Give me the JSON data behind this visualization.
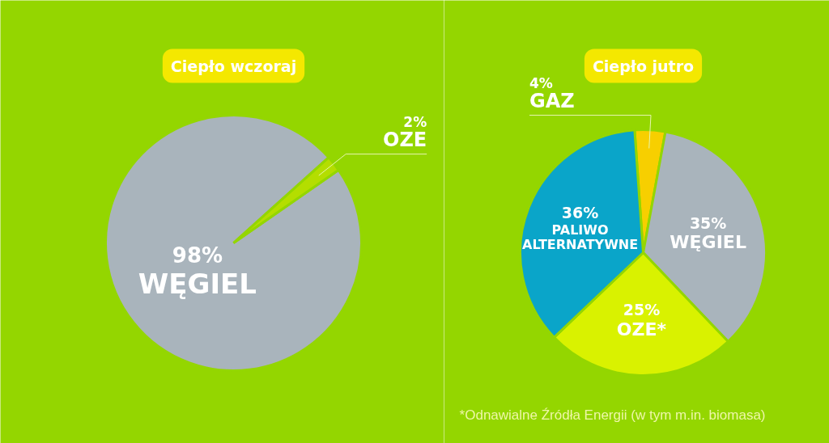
{
  "chart_data": [
    {
      "type": "pie",
      "title": "Ciepło wczoraj",
      "categories": [
        "WĘGIEL",
        "OZE"
      ],
      "values": [
        98,
        2
      ],
      "colors": [
        "#a9b4bc",
        "#b4de00"
      ],
      "value_labels": [
        "98%",
        "2%"
      ]
    },
    {
      "type": "pie",
      "title": "Ciepło jutro",
      "categories": [
        "GAZ",
        "WĘGIEL",
        "OZE*",
        "PALIWO ALTERNATYWNE"
      ],
      "values": [
        4,
        35,
        25,
        36
      ],
      "colors": [
        "#f7cf00",
        "#a9b4bc",
        "#d9f200",
        "#0aa5c9"
      ],
      "value_labels": [
        "4%",
        "35%",
        "25%",
        "36%"
      ],
      "annotations": [
        "*Odnawialne Źródła Energii (w tym m.in. biomasa)"
      ]
    }
  ]
}
